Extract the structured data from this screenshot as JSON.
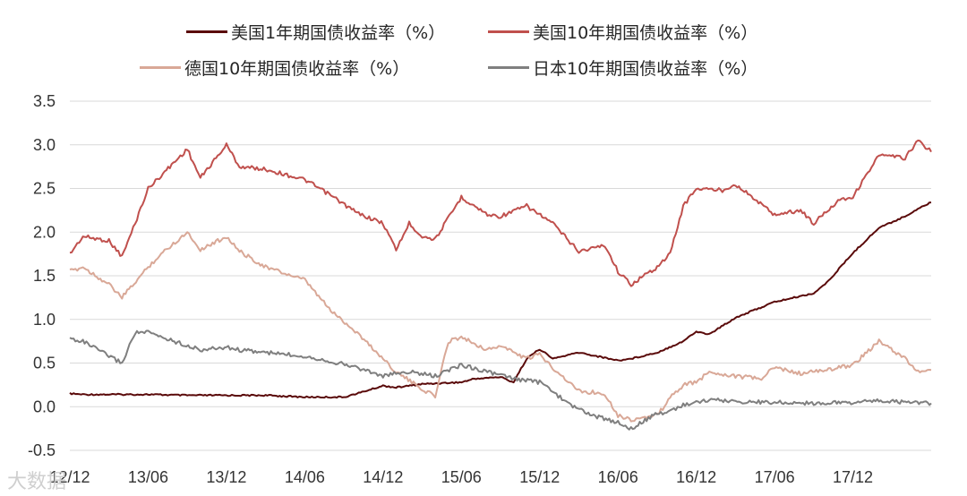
{
  "chart_data": {
    "type": "line",
    "title": "",
    "xlabel": "",
    "ylabel": "",
    "ylim": [
      -0.5,
      3.5
    ],
    "yticks": [
      "3.5",
      "3.0",
      "2.5",
      "2.0",
      "1.5",
      "1.0",
      "0.5",
      "0.0",
      "-0.5"
    ],
    "xticks": [
      "12/12",
      "13/06",
      "13/12",
      "14/06",
      "14/12",
      "15/06",
      "15/12",
      "16/06",
      "16/12",
      "17/06",
      "17/12"
    ],
    "grid": "horizontal",
    "legend_position": "top",
    "series": [
      {
        "name": "美国1年期国债收益率（%）",
        "color": "#5a0a0a",
        "points": [
          [
            "12/12",
            0.15
          ],
          [
            "13/01",
            0.14
          ],
          [
            "13/03",
            0.14
          ],
          [
            "13/06",
            0.14
          ],
          [
            "13/09",
            0.13
          ],
          [
            "13/12",
            0.13
          ],
          [
            "14/03",
            0.13
          ],
          [
            "14/06",
            0.11
          ],
          [
            "14/09",
            0.11
          ],
          [
            "14/10",
            0.15
          ],
          [
            "14/12",
            0.24
          ],
          [
            "15/01",
            0.22
          ],
          [
            "15/03",
            0.26
          ],
          [
            "15/06",
            0.28
          ],
          [
            "15/07",
            0.32
          ],
          [
            "15/09",
            0.34
          ],
          [
            "15/10",
            0.28
          ],
          [
            "15/11",
            0.55
          ],
          [
            "15/12",
            0.66
          ],
          [
            "16/01",
            0.55
          ],
          [
            "16/03",
            0.62
          ],
          [
            "16/05",
            0.56
          ],
          [
            "16/06",
            0.53
          ],
          [
            "16/07",
            0.55
          ],
          [
            "16/09",
            0.62
          ],
          [
            "16/11",
            0.75
          ],
          [
            "16/12",
            0.86
          ],
          [
            "17/01",
            0.83
          ],
          [
            "17/03",
            1.02
          ],
          [
            "17/06",
            1.2
          ],
          [
            "17/09",
            1.3
          ],
          [
            "17/10",
            1.42
          ],
          [
            "17/12",
            1.76
          ],
          [
            "18/02",
            2.05
          ],
          [
            "18/04",
            2.18
          ],
          [
            "18/05",
            2.27
          ],
          [
            "18/06",
            2.34
          ]
        ]
      },
      {
        "name": "美国10年期国债收益率（%）",
        "color": "#c0504d",
        "points": [
          [
            "12/12",
            1.75
          ],
          [
            "13/01",
            1.95
          ],
          [
            "13/03",
            1.9
          ],
          [
            "13/04",
            1.72
          ],
          [
            "13/05",
            2.1
          ],
          [
            "13/06",
            2.5
          ],
          [
            "13/07",
            2.65
          ],
          [
            "13/09",
            2.95
          ],
          [
            "13/10",
            2.62
          ],
          [
            "13/12",
            3.0
          ],
          [
            "14/01",
            2.75
          ],
          [
            "14/03",
            2.72
          ],
          [
            "14/06",
            2.6
          ],
          [
            "14/08",
            2.42
          ],
          [
            "14/10",
            2.22
          ],
          [
            "14/12",
            2.1
          ],
          [
            "15/01",
            1.8
          ],
          [
            "15/02",
            2.1
          ],
          [
            "15/03",
            1.95
          ],
          [
            "15/04",
            1.92
          ],
          [
            "15/06",
            2.4
          ],
          [
            "15/08",
            2.2
          ],
          [
            "15/09",
            2.18
          ],
          [
            "15/11",
            2.3
          ],
          [
            "16/01",
            2.1
          ],
          [
            "16/03",
            1.78
          ],
          [
            "16/05",
            1.85
          ],
          [
            "16/06",
            1.55
          ],
          [
            "16/07",
            1.4
          ],
          [
            "16/09",
            1.6
          ],
          [
            "16/10",
            1.75
          ],
          [
            "16/11",
            2.3
          ],
          [
            "16/12",
            2.5
          ],
          [
            "17/02",
            2.48
          ],
          [
            "17/03",
            2.55
          ],
          [
            "17/06",
            2.2
          ],
          [
            "17/08",
            2.25
          ],
          [
            "17/09",
            2.1
          ],
          [
            "17/11",
            2.38
          ],
          [
            "17/12",
            2.4
          ],
          [
            "18/01",
            2.65
          ],
          [
            "18/02",
            2.88
          ],
          [
            "18/04",
            2.85
          ],
          [
            "18/05",
            3.05
          ],
          [
            "18/06",
            2.92
          ]
        ]
      },
      {
        "name": "德国10年期国债收益率（%）",
        "color": "#d9a897",
        "points": [
          [
            "12/12",
            1.55
          ],
          [
            "13/01",
            1.6
          ],
          [
            "13/03",
            1.4
          ],
          [
            "13/04",
            1.25
          ],
          [
            "13/06",
            1.6
          ],
          [
            "13/07",
            1.75
          ],
          [
            "13/09",
            2.0
          ],
          [
            "13/10",
            1.8
          ],
          [
            "13/12",
            1.95
          ],
          [
            "14/01",
            1.78
          ],
          [
            "14/03",
            1.6
          ],
          [
            "14/06",
            1.45
          ],
          [
            "14/08",
            1.1
          ],
          [
            "14/10",
            0.85
          ],
          [
            "14/12",
            0.55
          ],
          [
            "15/01",
            0.4
          ],
          [
            "15/03",
            0.2
          ],
          [
            "15/04",
            0.12
          ],
          [
            "15/05",
            0.75
          ],
          [
            "15/06",
            0.8
          ],
          [
            "15/08",
            0.65
          ],
          [
            "15/09",
            0.7
          ],
          [
            "15/11",
            0.55
          ],
          [
            "15/12",
            0.6
          ],
          [
            "16/01",
            0.45
          ],
          [
            "16/03",
            0.18
          ],
          [
            "16/05",
            0.15
          ],
          [
            "16/06",
            -0.1
          ],
          [
            "16/07",
            -0.15
          ],
          [
            "16/09",
            -0.1
          ],
          [
            "16/10",
            0.1
          ],
          [
            "16/11",
            0.25
          ],
          [
            "16/12",
            0.28
          ],
          [
            "17/01",
            0.4
          ],
          [
            "17/03",
            0.35
          ],
          [
            "17/05",
            0.32
          ],
          [
            "17/06",
            0.45
          ],
          [
            "17/08",
            0.38
          ],
          [
            "17/10",
            0.42
          ],
          [
            "17/12",
            0.48
          ],
          [
            "18/02",
            0.75
          ],
          [
            "18/04",
            0.55
          ],
          [
            "18/05",
            0.4
          ],
          [
            "18/06",
            0.42
          ]
        ]
      },
      {
        "name": "日本10年期国债收益率（%）",
        "color": "#7f7f7f",
        "points": [
          [
            "12/12",
            0.78
          ],
          [
            "13/01",
            0.75
          ],
          [
            "13/03",
            0.58
          ],
          [
            "13/04",
            0.5
          ],
          [
            "13/05",
            0.85
          ],
          [
            "13/06",
            0.85
          ],
          [
            "13/08",
            0.75
          ],
          [
            "13/10",
            0.65
          ],
          [
            "13/12",
            0.68
          ],
          [
            "14/01",
            0.65
          ],
          [
            "14/03",
            0.62
          ],
          [
            "14/06",
            0.58
          ],
          [
            "14/08",
            0.52
          ],
          [
            "14/10",
            0.45
          ],
          [
            "14/12",
            0.35
          ],
          [
            "15/01",
            0.38
          ],
          [
            "15/02",
            0.4
          ],
          [
            "15/04",
            0.35
          ],
          [
            "15/06",
            0.48
          ],
          [
            "15/08",
            0.4
          ],
          [
            "15/10",
            0.32
          ],
          [
            "15/12",
            0.28
          ],
          [
            "16/01",
            0.18
          ],
          [
            "16/02",
            0.05
          ],
          [
            "16/04",
            -0.1
          ],
          [
            "16/06",
            -0.18
          ],
          [
            "16/07",
            -0.25
          ],
          [
            "16/09",
            -0.08
          ],
          [
            "16/10",
            -0.05
          ],
          [
            "16/11",
            0.02
          ],
          [
            "16/12",
            0.05
          ],
          [
            "17/01",
            0.08
          ],
          [
            "17/03",
            0.06
          ],
          [
            "17/06",
            0.05
          ],
          [
            "17/09",
            0.04
          ],
          [
            "17/12",
            0.05
          ],
          [
            "18/02",
            0.07
          ],
          [
            "18/04",
            0.05
          ],
          [
            "18/06",
            0.04
          ]
        ]
      }
    ]
  },
  "watermark": "大数据"
}
